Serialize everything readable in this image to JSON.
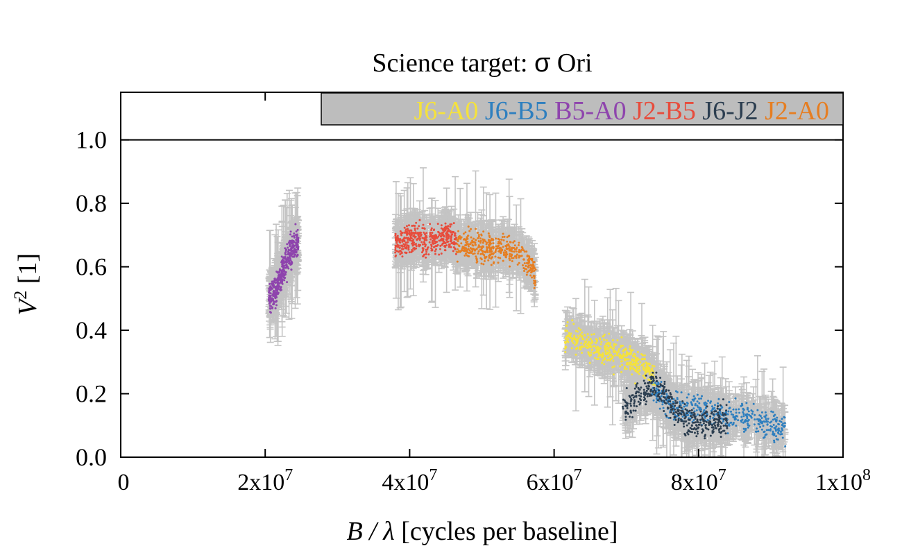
{
  "chart_data": {
    "type": "scatter",
    "title_prefix": "Science target: ",
    "title_symbol": "σ",
    "title_suffix": " Ori",
    "xlabel_var": "B / λ",
    "xlabel_rest": " [cycles per baseline]",
    "ylabel_var": "V",
    "ylabel_exp": "2",
    "ylabel_rest": " [1]",
    "xlim": [
      0,
      100000000
    ],
    "ylim": [
      0,
      1.15
    ],
    "reference_line_y": 1.0,
    "x_ticks": [
      {
        "value": 0,
        "mant": "0",
        "exp": ""
      },
      {
        "value": 20000000,
        "mant": "2x10",
        "exp": "7"
      },
      {
        "value": 40000000,
        "mant": "4x10",
        "exp": "7"
      },
      {
        "value": 60000000,
        "mant": "6x10",
        "exp": "7"
      },
      {
        "value": 80000000,
        "mant": "8x10",
        "exp": "7"
      },
      {
        "value": 100000000,
        "mant": "1x10",
        "exp": "8"
      }
    ],
    "y_ticks": [
      {
        "value": 0.0,
        "label": "0.0"
      },
      {
        "value": 0.2,
        "label": "0.2"
      },
      {
        "value": 0.4,
        "label": "0.4"
      },
      {
        "value": 0.6,
        "label": "0.6"
      },
      {
        "value": 0.8,
        "label": "0.8"
      },
      {
        "value": 1.0,
        "label": "1.0"
      }
    ],
    "grid": false,
    "legend_position": "top-right",
    "legend_background": "#bdbdbd",
    "errorbar_color": "#c4c4c4",
    "series": [
      {
        "name": "J6-A0",
        "color": "#f5e23c",
        "x": [
          61500000,
          63000000,
          65000000,
          67000000,
          69000000,
          71000000,
          73000000,
          74000000
        ],
        "y": [
          0.38,
          0.37,
          0.35,
          0.34,
          0.32,
          0.3,
          0.28,
          0.24
        ]
      },
      {
        "name": "J6-B5",
        "color": "#2e7fbf",
        "x": [
          73500000,
          76000000,
          78500000,
          81000000,
          84000000,
          87000000,
          90000000,
          92000000
        ],
        "y": [
          0.22,
          0.16,
          0.16,
          0.15,
          0.13,
          0.12,
          0.1,
          0.09
        ]
      },
      {
        "name": "B5-A0",
        "color": "#8e44ad",
        "x": [
          20500000,
          21000000,
          21500000,
          22000000,
          22500000,
          23000000,
          23500000,
          24000000,
          24600000
        ],
        "y": [
          0.5,
          0.51,
          0.53,
          0.56,
          0.59,
          0.62,
          0.64,
          0.66,
          0.68
        ]
      },
      {
        "name": "J2-B5",
        "color": "#e74c3c",
        "x": [
          38000000,
          39500000,
          41000000,
          42500000,
          44000000,
          45500000,
          46500000
        ],
        "y": [
          0.67,
          0.68,
          0.69,
          0.68,
          0.69,
          0.7,
          0.68
        ]
      },
      {
        "name": "J6-J2",
        "color": "#2c3e50",
        "x": [
          69500000,
          71000000,
          72500000,
          73500000,
          74500000,
          76000000,
          78000000,
          80000000,
          82000000,
          84000000
        ],
        "y": [
          0.16,
          0.18,
          0.21,
          0.23,
          0.22,
          0.17,
          0.12,
          0.1,
          0.11,
          0.12
        ]
      },
      {
        "name": "J2-A0",
        "color": "#e67e22",
        "x": [
          46500000,
          48000000,
          50000000,
          52000000,
          54000000,
          55500000,
          56500000,
          57500000
        ],
        "y": [
          0.67,
          0.67,
          0.66,
          0.66,
          0.65,
          0.64,
          0.62,
          0.56
        ]
      }
    ]
  }
}
